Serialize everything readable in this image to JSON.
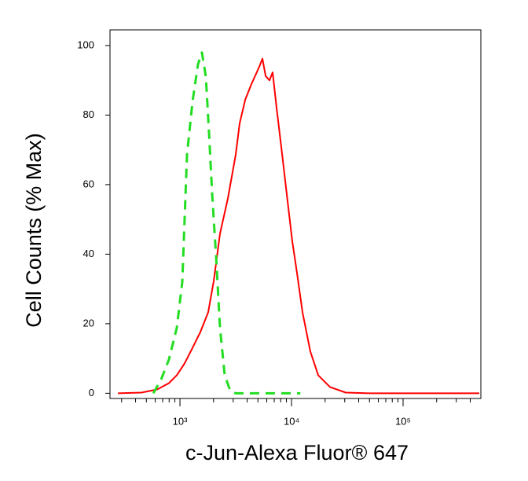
{
  "chart_data": {
    "type": "line",
    "y_label": "Cell Counts (% Max)",
    "x_label": "c-Jun-Alexa Fluor® 647",
    "xscale": "log",
    "xlim": [
      236,
      498000
    ],
    "ylim": [
      -1.5,
      104.5
    ],
    "xticks": [
      {
        "value": 1000,
        "label": "10³"
      },
      {
        "value": 10000,
        "label": "10⁴"
      },
      {
        "value": 100000,
        "label": "10⁵"
      }
    ],
    "xminorticks": [
      300,
      400,
      500,
      600,
      700,
      800,
      900,
      2000,
      3000,
      4000,
      5000,
      6000,
      7000,
      8000,
      9000,
      20000,
      30000,
      40000,
      50000,
      60000,
      70000,
      80000,
      90000,
      200000,
      300000,
      400000
    ],
    "yticks": [
      0,
      20,
      40,
      60,
      80,
      100
    ],
    "series": [
      {
        "color": "#ff0000",
        "dash": false,
        "x": [
          278,
          452,
          625,
          797,
          937,
          1102,
          1297,
          1524,
          1793,
          2009,
          2286,
          2690,
          3162,
          3428,
          3843,
          4375,
          5143,
          5488,
          5859,
          6353,
          6776,
          7345,
          8091,
          9072,
          10164,
          11198,
          12554,
          14760,
          17350,
          22130,
          30620,
          49770,
          482000
        ],
        "values": [
          0,
          0.2,
          1.1,
          2.9,
          5.2,
          8.6,
          13.1,
          17.6,
          23.3,
          32.4,
          45.9,
          56.1,
          68.6,
          77.6,
          84.4,
          88.9,
          93.9,
          96.2,
          91.2,
          90,
          92.3,
          82.1,
          70.8,
          57.2,
          43.7,
          34.6,
          23.3,
          12,
          5.2,
          1.8,
          0.2,
          0,
          0
        ]
      },
      {
        "color": "#22dd22",
        "dash": true,
        "x": [
          577,
          678,
          796,
          937,
          1050,
          1157,
          1297,
          1452,
          1575,
          1707,
          1822,
          1945,
          2109,
          2286,
          2519,
          2824,
          3161,
          12000
        ],
        "values": [
          0,
          4,
          9.7,
          18.8,
          32,
          68.6,
          84,
          94.6,
          98,
          91,
          75,
          57,
          39,
          18.8,
          5.2,
          0.7,
          0,
          0
        ]
      }
    ]
  }
}
